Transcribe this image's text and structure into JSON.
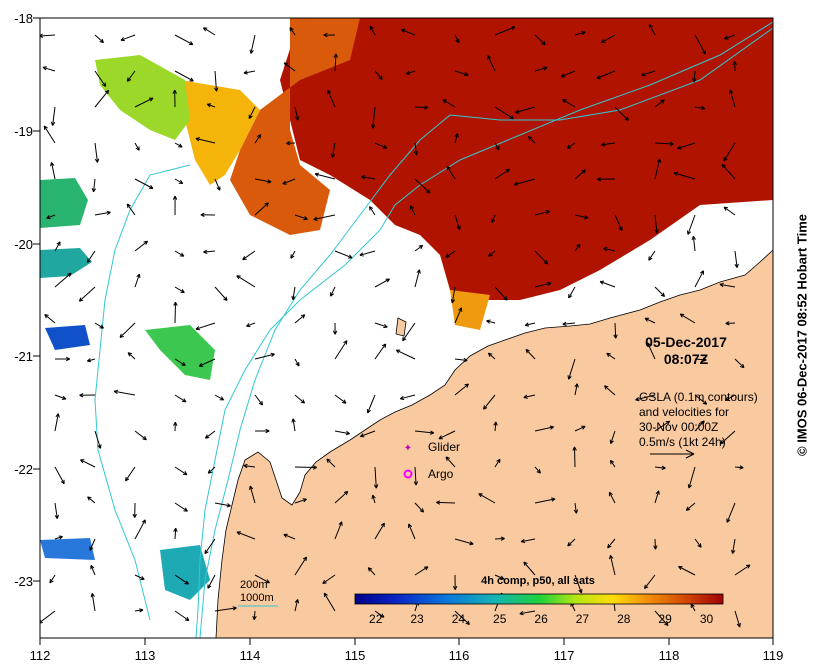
{
  "map": {
    "lon_min": 112,
    "lon_max": 119,
    "lat_min": -23.5,
    "lat_max": -18,
    "x_ticks": [
      "112",
      "113",
      "114",
      "115",
      "116",
      "117",
      "118",
      "119"
    ],
    "y_ticks": [
      "-18",
      "-19",
      "-20",
      "-21",
      "-22",
      "-23"
    ],
    "land_color": "#f9c9a0",
    "contour_color": "#32c8d2"
  },
  "date": "05-Dec-2017",
  "time": "08:07Z",
  "velocity_note": {
    "line1": "GSLA (0.1m contours)",
    "line2": "and velocities for",
    "line3": "30-Nov 00:00Z",
    "line4": "0.5m/s (1kt 24h)"
  },
  "markers": {
    "glider_label": "Glider",
    "glider_color": "#c000c0",
    "argo_label": "Argo",
    "argo_color": "#ff00ff"
  },
  "depth_legend": {
    "line1": "200m",
    "line2": "1000m"
  },
  "colorbar": {
    "title": "4h comp, p50, all sats",
    "ticks": [
      "22",
      "23",
      "24",
      "25",
      "26",
      "27",
      "28",
      "29",
      "30"
    ],
    "vmin": 21.5,
    "vmax": 30.4
  },
  "credit": "© IMOS 06-Dec-2017 08:52 Hobart Time"
}
